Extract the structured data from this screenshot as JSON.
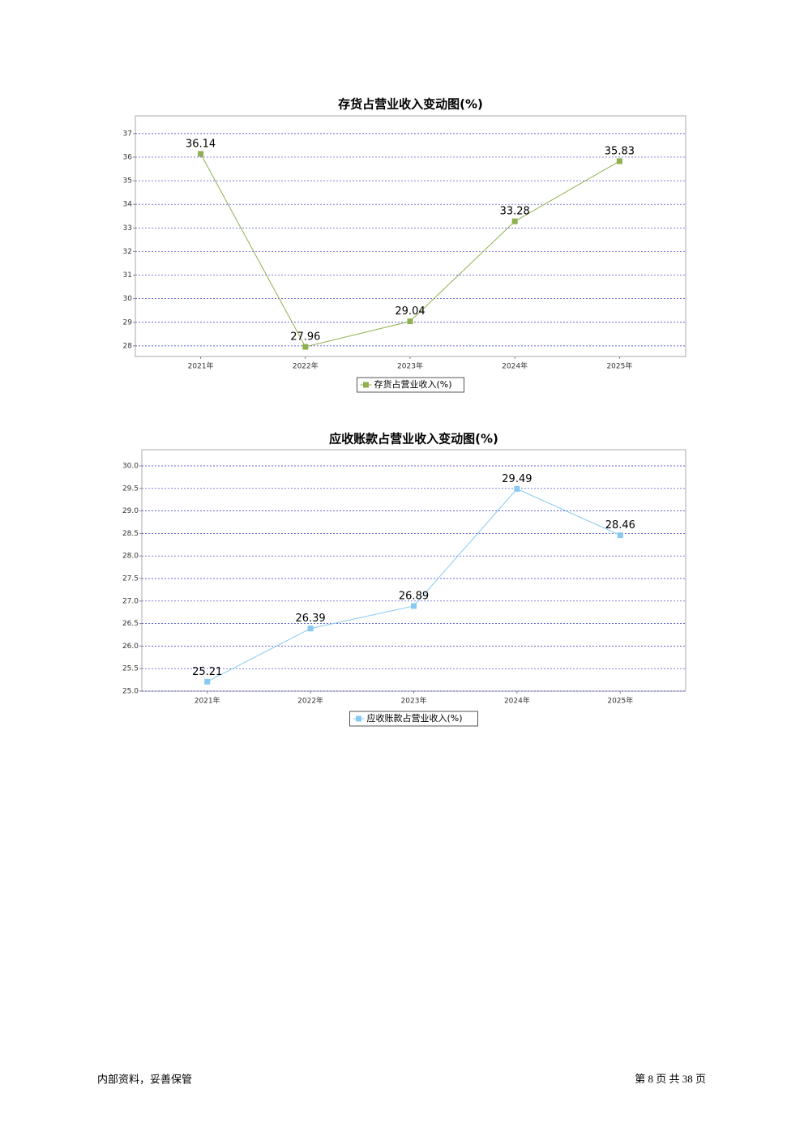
{
  "chart_data": [
    {
      "type": "line",
      "title": "存货占营业收入变动图(%)",
      "categories": [
        "2021年",
        "2022年",
        "2023年",
        "2024年",
        "2025年"
      ],
      "series": [
        {
          "name": "存货占营业收入(%)",
          "color": "#8fb04f",
          "values": [
            36.14,
            27.96,
            29.04,
            33.28,
            35.83
          ]
        }
      ],
      "ylim": [
        27.55,
        37.75
      ],
      "yticks": [
        28,
        29,
        30,
        31,
        32,
        33,
        34,
        35,
        36,
        37
      ],
      "grid": true
    },
    {
      "type": "line",
      "title": "应收账款占营业收入变动图(%)",
      "categories": [
        "2021年",
        "2022年",
        "2023年",
        "2024年",
        "2025年"
      ],
      "series": [
        {
          "name": "应收账款占营业收入(%)",
          "color": "#87c9f0",
          "values": [
            25.21,
            26.39,
            26.89,
            29.49,
            28.46
          ]
        }
      ],
      "ylim": [
        25,
        30.36
      ],
      "yticks": [
        {
          "value": 25,
          "label": "25.0"
        },
        {
          "value": 25.5,
          "label": "25.5"
        },
        {
          "value": 26,
          "label": "26.0"
        },
        {
          "value": 26.5,
          "label": "26.5"
        },
        {
          "value": 27,
          "label": "27.0"
        },
        {
          "value": 27.5,
          "label": "27.5"
        },
        {
          "value": 28,
          "label": "28.0"
        },
        {
          "value": 28.5,
          "label": "28.5"
        },
        {
          "value": 29,
          "label": "29.0"
        },
        {
          "value": 29.5,
          "label": "29.5"
        },
        {
          "value": 30,
          "label": "30.0"
        }
      ],
      "grid": true
    }
  ],
  "footer": {
    "left": "内部资料，妥善保管",
    "right": "第 8 页   共 38 页"
  }
}
